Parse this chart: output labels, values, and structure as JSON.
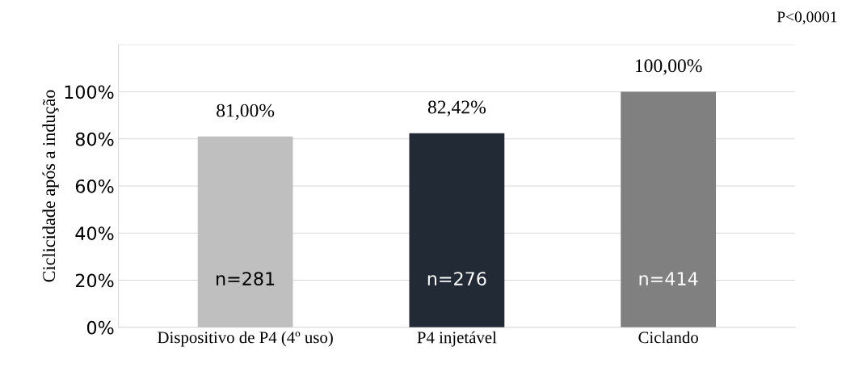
{
  "chart_data": {
    "type": "bar",
    "ylabel": "Ciclicidade após a indução",
    "categories": [
      "Dispositivo de P4 (4º uso)",
      "P4 injetável",
      "Ciclando"
    ],
    "values": [
      81.0,
      82.42,
      100.0
    ],
    "colors": [
      "#bfbfbf",
      "#222a35",
      "#808080"
    ],
    "value_labels": [
      "81,00%",
      "82,42%",
      "100,00%"
    ],
    "ylim": [
      0,
      120
    ],
    "yticks": [
      {
        "value": 0,
        "label": "0%"
      },
      {
        "value": 20,
        "label": "20%"
      },
      {
        "value": 40,
        "label": "40%"
      },
      {
        "value": 60,
        "label": "60%"
      },
      {
        "value": 80,
        "label": "80%"
      },
      {
        "value": 100,
        "label": "100%"
      },
      {
        "value": 120,
        "label": null
      }
    ],
    "grid": "y",
    "legend": false,
    "annotations": [
      "n=281",
      "n=276",
      "n=414",
      "P<0,0001"
    ]
  }
}
